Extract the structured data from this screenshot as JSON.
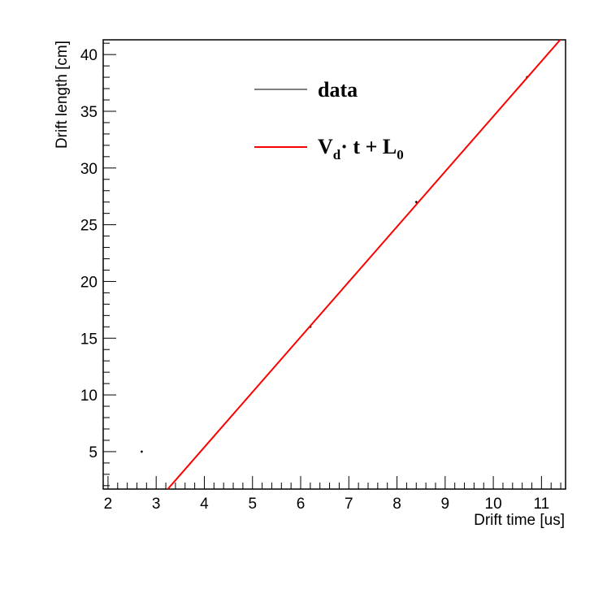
{
  "chart_data": {
    "type": "scatter",
    "xlabel": "Drift time [us]",
    "ylabel": "Drift length [cm]",
    "xlim": [
      1.9,
      11.5
    ],
    "ylim": [
      1.7,
      41.3
    ],
    "x_ticks": [
      2,
      3,
      4,
      5,
      6,
      7,
      8,
      9,
      10,
      11
    ],
    "y_ticks": [
      5,
      10,
      15,
      20,
      25,
      30,
      35,
      40
    ],
    "x_tick_labels": [
      "2",
      "3",
      "4",
      "5",
      "6",
      "7",
      "8",
      "9",
      "10",
      "11"
    ],
    "y_tick_labels": [
      "5",
      "10",
      "15",
      "20",
      "25",
      "30",
      "35",
      "40"
    ],
    "grid": false,
    "legend_position": "top-center",
    "series": [
      {
        "name": "data",
        "kind": "points",
        "color": "#000000",
        "x": [
          2.7,
          6.2,
          8.4,
          10.7
        ],
        "y": [
          5,
          16,
          27,
          38
        ]
      },
      {
        "name": "fit",
        "kind": "line",
        "color": "#ff0000",
        "slope": 4.86,
        "intercept": -14.05
      }
    ],
    "legend": {
      "data_label": "data",
      "fit_label_main": "V",
      "fit_label_sub1": "d",
      "fit_label_mid": "· t + L",
      "fit_label_sub2": "0"
    }
  }
}
